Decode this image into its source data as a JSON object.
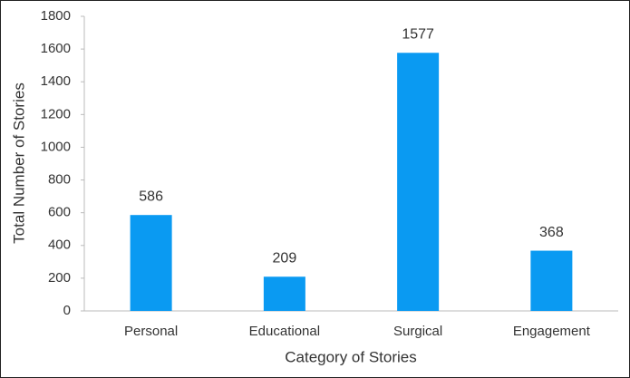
{
  "chart_data": {
    "type": "bar",
    "x_label": "Category of Stories",
    "y_label": "Total Number of Stories",
    "categories": [
      "Personal",
      "Educational",
      "Surgical",
      "Engagement"
    ],
    "values": [
      586,
      209,
      1577,
      368
    ],
    "color": "#0a9af2",
    "ylim": [
      0,
      1800
    ],
    "yticks": [
      0,
      200,
      400,
      600,
      800,
      1000,
      1200,
      1400,
      1600,
      1800
    ],
    "grid": false,
    "data_labels": true
  }
}
